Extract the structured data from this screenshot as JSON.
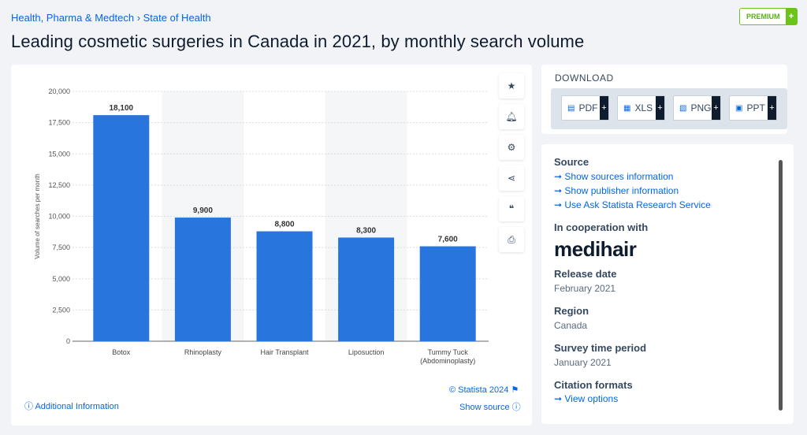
{
  "breadcrumb": [
    "Health, Pharma & Medtech",
    "State of Health"
  ],
  "premium": {
    "label": "PREMIUM",
    "plus": "+"
  },
  "title": "Leading cosmetic surgeries in Canada in 2021, by monthly search volume",
  "tools": [
    "star-icon",
    "bell-icon",
    "gear-icon",
    "share-icon",
    "quote-icon",
    "print-icon"
  ],
  "download": {
    "heading": "DOWNLOAD",
    "buttons": [
      "PDF",
      "XLS",
      "PNG",
      "PPT"
    ],
    "plus": "+"
  },
  "info": {
    "source_label": "Source",
    "source_links": [
      "Show sources information",
      "Show publisher information",
      "Use Ask Statista Research Service"
    ],
    "coop_label": "In cooperation with",
    "coop_logo": "medihair",
    "release_label": "Release date",
    "release_value": "February 2021",
    "region_label": "Region",
    "region_value": "Canada",
    "period_label": "Survey time period",
    "period_value": "January 2021",
    "citation_label": "Citation formats",
    "citation_link": "View options"
  },
  "footer": {
    "copyright": "© Statista 2024",
    "additional": "Additional Information",
    "show_source": "Show source"
  },
  "colors": {
    "bar": "#2876dd",
    "link": "#0666e5"
  },
  "chart_data": {
    "type": "bar",
    "categories": [
      "Botox",
      "Rhinoplasty",
      "Hair Transplant",
      "Liposuction",
      "Tummy Tuck (Abdominoplasty)"
    ],
    "values": [
      18100,
      9900,
      8800,
      8300,
      7600
    ],
    "value_labels": [
      "18,100",
      "9,900",
      "8,800",
      "8,300",
      "7,600"
    ],
    "ylabel": "Volume of searches per month",
    "ylim": [
      0,
      20000
    ],
    "yticks": [
      "0",
      "2,500",
      "5,000",
      "7,500",
      "10,000",
      "12,500",
      "15,000",
      "17,500",
      "20,000"
    ],
    "grid": true
  }
}
